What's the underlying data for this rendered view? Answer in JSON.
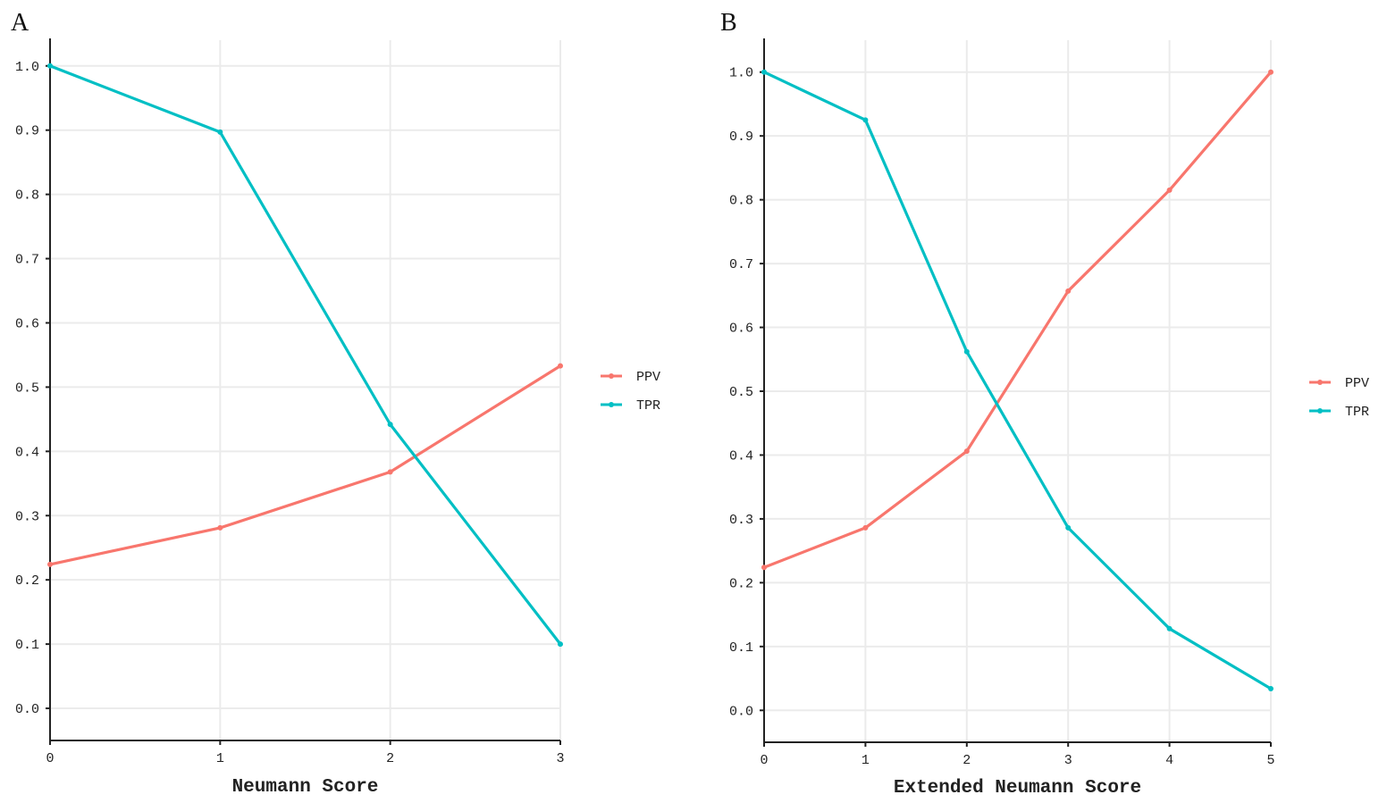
{
  "chart_data": [
    {
      "type": "line",
      "panel_label": "A",
      "title": "",
      "xlabel": "Neumann Score",
      "ylabel": "",
      "x": [
        0,
        1,
        2,
        3
      ],
      "x_ticks": [
        "0",
        "1",
        "2",
        "3"
      ],
      "y_ticks": [
        "0.0",
        "0.1",
        "0.2",
        "0.3",
        "0.4",
        "0.5",
        "0.6",
        "0.7",
        "0.8",
        "0.9",
        "1.0"
      ],
      "xlim": [
        0,
        3
      ],
      "ylim": [
        -0.05,
        1.04
      ],
      "grid": true,
      "legend_position": "right",
      "series": [
        {
          "name": "PPV",
          "color": "#f8766d",
          "values": [
            0.224,
            0.281,
            0.368,
            0.533
          ]
        },
        {
          "name": "TPR",
          "color": "#00bfc4",
          "values": [
            1.0,
            0.897,
            0.442,
            0.1
          ]
        }
      ]
    },
    {
      "type": "line",
      "panel_label": "B",
      "title": "",
      "xlabel": "Extended Neumann Score",
      "ylabel": "",
      "x": [
        0,
        1,
        2,
        3,
        4,
        5
      ],
      "x_ticks": [
        "0",
        "1",
        "2",
        "3",
        "4",
        "5"
      ],
      "y_ticks": [
        "0.0",
        "0.1",
        "0.2",
        "0.3",
        "0.4",
        "0.5",
        "0.6",
        "0.7",
        "0.8",
        "0.9",
        "1.0"
      ],
      "xlim": [
        0,
        5
      ],
      "ylim": [
        -0.05,
        1.05
      ],
      "grid": true,
      "legend_position": "right",
      "series": [
        {
          "name": "PPV",
          "color": "#f8766d",
          "values": [
            0.224,
            0.286,
            0.406,
            0.657,
            0.815,
            1.0
          ]
        },
        {
          "name": "TPR",
          "color": "#00bfc4",
          "values": [
            1.0,
            0.925,
            0.562,
            0.286,
            0.128,
            0.034
          ]
        }
      ]
    }
  ]
}
